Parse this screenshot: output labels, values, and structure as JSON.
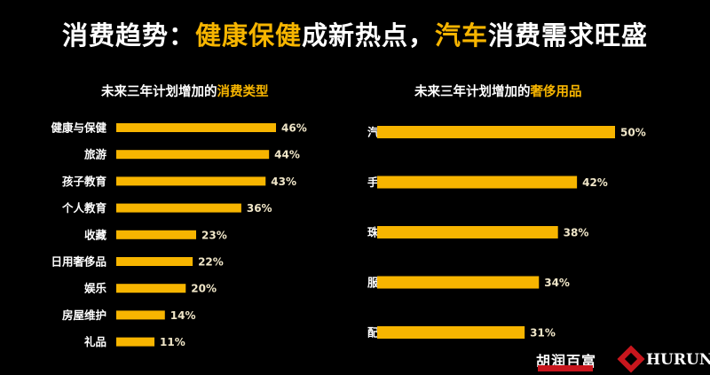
{
  "header": {
    "title_part1": "消费趋势：",
    "title_part2": "健康保健",
    "title_part3": "成新热点，",
    "title_part4": "汽车",
    "title_part5": "消费需求旺盛"
  },
  "left_chart": {
    "subtitle_plain": "未来三年计划增加的",
    "subtitle_highlight": "消费类型"
  },
  "right_chart": {
    "subtitle_plain": "未来三年计划增加的",
    "subtitle_highlight": "奢侈用品"
  },
  "logos": {
    "hurun_cn": "胡润百富",
    "hurun_en": "HURUN"
  },
  "colors": {
    "bar": "#f7b500",
    "highlight": "#f7b500",
    "background": "#000000"
  },
  "chart_data": [
    {
      "type": "bar",
      "orientation": "horizontal",
      "title": "未来三年计划增加的消费类型",
      "categories": [
        "健康与保健",
        "旅游",
        "孩子教育",
        "个人教育",
        "收藏",
        "日用奢侈品",
        "娱乐",
        "房屋维护",
        "礼品"
      ],
      "values": [
        46,
        44,
        43,
        36,
        23,
        22,
        20,
        14,
        11
      ],
      "value_labels": [
        "46%",
        "44%",
        "43%",
        "36%",
        "23%",
        "22%",
        "20%",
        "14%",
        "11%"
      ],
      "unit": "%"
    },
    {
      "type": "bar",
      "orientation": "horizontal",
      "title": "未来三年计划增加的奢侈用品",
      "categories": [
        "汽车",
        "手表",
        "珠宝",
        "服装",
        "配饰"
      ],
      "values": [
        50,
        42,
        38,
        34,
        31
      ],
      "value_labels": [
        "50%",
        "42%",
        "38%",
        "34%",
        "31%"
      ],
      "unit": "%"
    }
  ]
}
